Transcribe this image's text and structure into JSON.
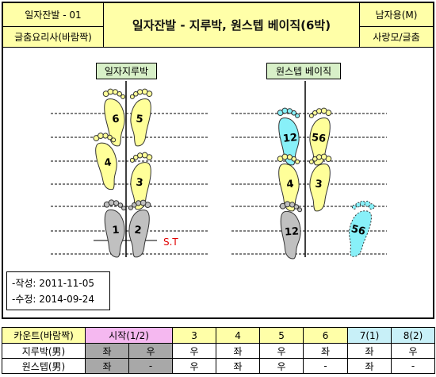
{
  "header": {
    "left_top": "일자잔발 - 01",
    "left_bottom": "글춤요리사(바람짝)",
    "title": "일자잔발 - 지루박, 원스텝 베이직(6박)",
    "right_top": "남자용(M)",
    "right_bottom": "사랑모/글춤"
  },
  "diagram": {
    "left_label": "일자지루박",
    "right_label": "원스텝 베이직",
    "start_label": "S.T",
    "left_steps": [
      {
        "foot": "left",
        "num": "6",
        "color": "#ffff99"
      },
      {
        "foot": "right",
        "num": "5",
        "color": "#ffff99"
      },
      {
        "foot": "left",
        "num": "4",
        "color": "#ffff99"
      },
      {
        "foot": "right",
        "num": "3",
        "color": "#ffff99"
      },
      {
        "foot": "left",
        "num": "1",
        "color": "#c0c0c0"
      },
      {
        "foot": "right",
        "num": "2",
        "color": "#c0c0c0"
      }
    ],
    "right_steps": [
      {
        "foot": "left",
        "num": "12",
        "color": "#88f0f8"
      },
      {
        "foot": "right",
        "num": "56",
        "color": "#ffff99"
      },
      {
        "foot": "left",
        "num": "4",
        "color": "#ffff99"
      },
      {
        "foot": "right",
        "num": "3",
        "color": "#ffff99"
      },
      {
        "foot": "left",
        "num": "12",
        "color": "#c0c0c0"
      },
      {
        "foot": "right",
        "num": "56",
        "color": "#88f0f8"
      }
    ]
  },
  "notes": {
    "created": "-작성: 2011-11-05",
    "modified": "-수정: 2014-09-24"
  },
  "count_table": {
    "header_label": "카운트(바람짝)",
    "start_label": "시작(1/2)",
    "columns": [
      "3",
      "4",
      "5",
      "6",
      "7(1)",
      "8(2)"
    ],
    "rows": [
      {
        "label": "지루박(男)",
        "start": [
          "좌",
          "우"
        ],
        "cells": [
          "우",
          "좌",
          "우",
          "좌",
          "좌",
          "우"
        ]
      },
      {
        "label": "원스텝(男)",
        "start": [
          "좌",
          "-"
        ],
        "cells": [
          "우",
          "좌",
          "우",
          "-",
          "좌",
          "-"
        ]
      }
    ]
  }
}
